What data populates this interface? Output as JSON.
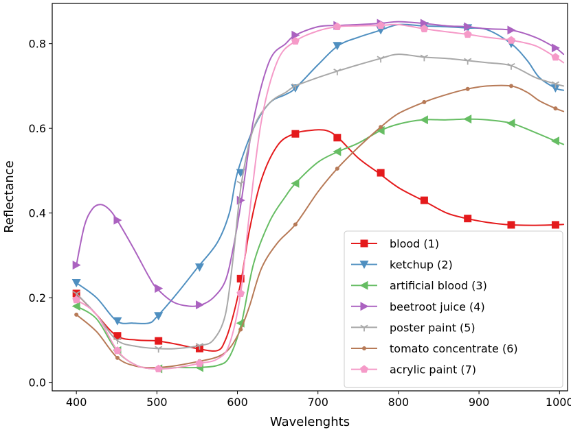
{
  "chart_data": {
    "type": "line",
    "title": "",
    "xlabel": "Wavelenghts",
    "ylabel": "Reflectance",
    "xlim": [
      370,
      1010
    ],
    "ylim": [
      -0.02,
      0.895
    ],
    "x_ticks": [
      400,
      500,
      600,
      700,
      800,
      900,
      1000
    ],
    "x_tick_labels": [
      "400",
      "500",
      "600",
      "700",
      "800",
      "900",
      "1000"
    ],
    "y_ticks": [
      0.0,
      0.2,
      0.4,
      0.6,
      0.8
    ],
    "y_tick_labels": [
      "0.0",
      "0.2",
      "0.4",
      "0.6",
      "0.8"
    ],
    "grid": false,
    "legend_position": "lower-right",
    "series": [
      {
        "name": "blood (1)",
        "color": "#e41a1c",
        "marker": "square",
        "x": [
          400,
          410,
          425,
          450,
          475,
          500,
          525,
          550,
          575,
          585,
          595,
          605,
          615,
          630,
          650,
          670,
          690,
          710,
          725,
          750,
          775,
          800,
          830,
          860,
          885,
          910,
          940,
          970,
          995,
          1005
        ],
        "y": [
          0.21,
          0.19,
          0.16,
          0.11,
          0.1,
          0.098,
          0.09,
          0.08,
          0.075,
          0.1,
          0.16,
          0.245,
          0.36,
          0.48,
          0.56,
          0.587,
          0.595,
          0.595,
          0.578,
          0.53,
          0.495,
          0.46,
          0.43,
          0.4,
          0.387,
          0.378,
          0.372,
          0.371,
          0.372,
          0.373
        ],
        "markers_x": [
          400,
          451,
          502,
          553,
          604,
          672,
          724,
          778,
          832,
          886,
          940,
          995
        ],
        "markers_y": [
          0.21,
          0.11,
          0.098,
          0.08,
          0.245,
          0.587,
          0.578,
          0.495,
          0.43,
          0.387,
          0.372,
          0.372
        ]
      },
      {
        "name": "ketchup (2)",
        "color": "#4f8fc0",
        "marker": "triangle-down",
        "x": [
          400,
          425,
          450,
          470,
          490,
          500,
          525,
          550,
          575,
          590,
          600,
          620,
          640,
          660,
          672,
          700,
          725,
          750,
          775,
          800,
          830,
          860,
          885,
          910,
          940,
          960,
          975,
          995,
          1005
        ],
        "y": [
          0.235,
          0.2,
          0.145,
          0.14,
          0.14,
          0.155,
          0.21,
          0.27,
          0.33,
          0.4,
          0.495,
          0.6,
          0.66,
          0.68,
          0.695,
          0.75,
          0.795,
          0.815,
          0.83,
          0.845,
          0.842,
          0.84,
          0.837,
          0.833,
          0.8,
          0.76,
          0.72,
          0.695,
          0.69
        ],
        "markers_x": [
          400,
          451,
          502,
          553,
          604,
          672,
          724,
          778,
          832,
          886,
          940,
          995
        ],
        "markers_y": [
          0.235,
          0.145,
          0.157,
          0.272,
          0.495,
          0.695,
          0.795,
          0.832,
          0.842,
          0.837,
          0.8,
          0.695
        ]
      },
      {
        "name": "artificial blood (3)",
        "color": "#66bd63",
        "marker": "triangle-left",
        "x": [
          400,
          425,
          450,
          475,
          500,
          525,
          550,
          575,
          590,
          605,
          620,
          640,
          660,
          672,
          700,
          725,
          750,
          778,
          800,
          830,
          860,
          885,
          910,
          940,
          970,
          995,
          1005
        ],
        "y": [
          0.18,
          0.15,
          0.075,
          0.04,
          0.032,
          0.035,
          0.035,
          0.04,
          0.06,
          0.14,
          0.28,
          0.38,
          0.44,
          0.47,
          0.52,
          0.545,
          0.565,
          0.595,
          0.61,
          0.62,
          0.62,
          0.622,
          0.62,
          0.612,
          0.59,
          0.57,
          0.562
        ],
        "markers_x": [
          400,
          451,
          502,
          553,
          604,
          672,
          724,
          778,
          832,
          886,
          940,
          995
        ],
        "markers_y": [
          0.18,
          0.075,
          0.032,
          0.035,
          0.14,
          0.47,
          0.545,
          0.595,
          0.62,
          0.622,
          0.612,
          0.57
        ]
      },
      {
        "name": "beetroot juice (4)",
        "color": "#ab62c0",
        "marker": "triangle-right",
        "x": [
          400,
          410,
          420,
          430,
          440,
          450,
          470,
          490,
          500,
          520,
          540,
          555,
          570,
          585,
          595,
          605,
          620,
          640,
          660,
          672,
          700,
          725,
          750,
          778,
          800,
          830,
          860,
          885,
          910,
          940,
          970,
          995,
          1005
        ],
        "y": [
          0.277,
          0.37,
          0.41,
          0.42,
          0.41,
          0.385,
          0.32,
          0.25,
          0.222,
          0.19,
          0.18,
          0.183,
          0.2,
          0.24,
          0.32,
          0.43,
          0.62,
          0.76,
          0.8,
          0.82,
          0.84,
          0.843,
          0.845,
          0.848,
          0.852,
          0.848,
          0.842,
          0.84,
          0.835,
          0.832,
          0.815,
          0.79,
          0.775
        ],
        "markers_x": [
          400,
          451,
          502,
          553,
          604,
          672,
          724,
          778,
          832,
          886,
          940,
          995
        ],
        "markers_y": [
          0.277,
          0.383,
          0.222,
          0.183,
          0.43,
          0.82,
          0.843,
          0.848,
          0.848,
          0.84,
          0.832,
          0.79
        ]
      },
      {
        "name": "poster paint (5)",
        "color": "#a8a8a8",
        "marker": "tri-down",
        "x": [
          400,
          425,
          450,
          475,
          500,
          525,
          553,
          570,
          585,
          595,
          605,
          620,
          640,
          660,
          672,
          700,
          724,
          750,
          778,
          800,
          832,
          860,
          886,
          910,
          940,
          970,
          995,
          1005
        ],
        "y": [
          0.21,
          0.16,
          0.1,
          0.085,
          0.08,
          0.08,
          0.087,
          0.1,
          0.16,
          0.3,
          0.47,
          0.6,
          0.66,
          0.685,
          0.7,
          0.72,
          0.735,
          0.75,
          0.765,
          0.775,
          0.768,
          0.765,
          0.76,
          0.755,
          0.748,
          0.72,
          0.705,
          0.7
        ],
        "markers_x": [
          400,
          451,
          502,
          553,
          604,
          672,
          724,
          778,
          832,
          886,
          940,
          995
        ],
        "markers_y": [
          0.21,
          0.1,
          0.08,
          0.087,
          0.47,
          0.7,
          0.735,
          0.765,
          0.768,
          0.76,
          0.748,
          0.705
        ]
      },
      {
        "name": "tomato concentrate (6)",
        "color": "#b77a57",
        "marker": "point",
        "x": [
          400,
          425,
          451,
          475,
          500,
          525,
          553,
          575,
          590,
          604,
          615,
          630,
          650,
          672,
          700,
          724,
          750,
          778,
          800,
          832,
          860,
          886,
          910,
          940,
          960,
          975,
          995,
          1005
        ],
        "y": [
          0.16,
          0.12,
          0.058,
          0.038,
          0.035,
          0.04,
          0.05,
          0.06,
          0.08,
          0.125,
          0.18,
          0.27,
          0.33,
          0.373,
          0.45,
          0.505,
          0.555,
          0.603,
          0.635,
          0.662,
          0.68,
          0.693,
          0.7,
          0.7,
          0.685,
          0.665,
          0.647,
          0.64
        ],
        "markers_x": [
          400,
          451,
          502,
          553,
          604,
          672,
          724,
          778,
          832,
          886,
          940,
          995
        ],
        "markers_y": [
          0.16,
          0.058,
          0.035,
          0.05,
          0.125,
          0.373,
          0.505,
          0.603,
          0.662,
          0.693,
          0.7,
          0.647
        ]
      },
      {
        "name": "acrylic paint (7)",
        "color": "#f59ac8",
        "marker": "pentagon",
        "x": [
          400,
          425,
          451,
          475,
          500,
          525,
          553,
          575,
          590,
          604,
          615,
          630,
          650,
          672,
          700,
          724,
          750,
          778,
          800,
          832,
          860,
          886,
          910,
          940,
          970,
          995,
          1005
        ],
        "y": [
          0.195,
          0.16,
          0.075,
          0.04,
          0.032,
          0.035,
          0.045,
          0.055,
          0.09,
          0.21,
          0.4,
          0.62,
          0.76,
          0.806,
          0.83,
          0.84,
          0.842,
          0.843,
          0.845,
          0.835,
          0.828,
          0.822,
          0.815,
          0.808,
          0.795,
          0.768,
          0.755
        ],
        "markers_x": [
          400,
          451,
          502,
          553,
          604,
          672,
          724,
          778,
          832,
          886,
          940,
          995
        ],
        "markers_y": [
          0.195,
          0.075,
          0.032,
          0.045,
          0.21,
          0.806,
          0.84,
          0.843,
          0.835,
          0.822,
          0.808,
          0.768
        ]
      }
    ]
  }
}
